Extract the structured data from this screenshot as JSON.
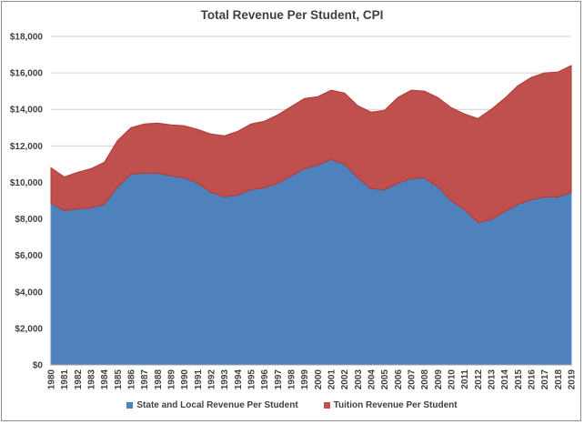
{
  "chart_data": {
    "type": "area",
    "stacked": true,
    "title": "Total Revenue Per Student, CPI",
    "xlabel": "",
    "ylabel": "",
    "ylim": [
      0,
      18000
    ],
    "yticks": [
      "$0",
      "$2,000",
      "$4,000",
      "$6,000",
      "$8,000",
      "$10,000",
      "$12,000",
      "$14,000",
      "$16,000",
      "$18,000"
    ],
    "grid": true,
    "legend": "bottom",
    "x": [
      1980,
      1981,
      1982,
      1983,
      1984,
      1985,
      1986,
      1987,
      1988,
      1989,
      1990,
      1991,
      1992,
      1993,
      1994,
      1995,
      1996,
      1997,
      1998,
      1999,
      2000,
      2001,
      2002,
      2003,
      2004,
      2005,
      2006,
      2007,
      2008,
      2009,
      2010,
      2011,
      2012,
      2013,
      2014,
      2015,
      2016,
      2017,
      2018,
      2019
    ],
    "series": [
      {
        "name": "State and Local Revenue Per Student",
        "color": "#4f81bd",
        "values": [
          8850,
          8450,
          8550,
          8600,
          8800,
          9750,
          10450,
          10500,
          10500,
          10350,
          10250,
          9950,
          9450,
          9200,
          9300,
          9600,
          9700,
          9950,
          10350,
          10750,
          10950,
          11250,
          11000,
          10250,
          9650,
          9600,
          9950,
          10200,
          10250,
          9750,
          9000,
          8500,
          7800,
          7950,
          8400,
          8800,
          9050,
          9200,
          9200,
          9450
        ]
      },
      {
        "name": "Tuition Revenue Per Student",
        "color": "#c0504d",
        "values": [
          1950,
          1850,
          2000,
          2150,
          2300,
          2550,
          2550,
          2700,
          2750,
          2800,
          2850,
          2950,
          3200,
          3350,
          3500,
          3600,
          3650,
          3750,
          3800,
          3850,
          3750,
          3800,
          3900,
          3950,
          4200,
          4350,
          4700,
          4850,
          4750,
          4900,
          5100,
          5250,
          5700,
          6050,
          6200,
          6500,
          6700,
          6800,
          6850,
          6950
        ]
      }
    ]
  }
}
